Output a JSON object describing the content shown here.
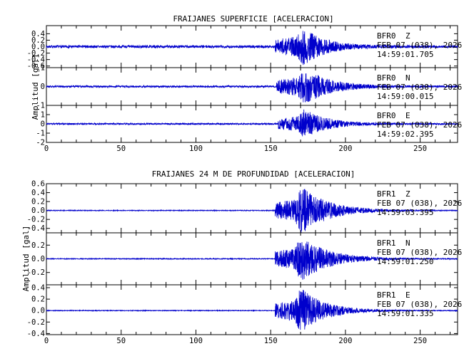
{
  "chart_data": [
    {
      "type": "line",
      "title": "FRAIJANES SUPERFICIE [ACELERACION]",
      "ylabel": "Amplitud [gal]",
      "xlim": [
        0,
        275
      ],
      "x_ticks": [
        "0",
        "50",
        "100",
        "150",
        "200",
        "250"
      ],
      "line_color": "#0000cc",
      "series": [
        {
          "station": "BFR0",
          "component": "Z",
          "date": "FEB 07 (038), 2026",
          "time": "14:59:01.705",
          "ylim": [
            -0.65,
            0.65
          ],
          "y_ticks": [
            "0.4",
            "0.2",
            "0.0",
            "-0.2",
            "-0.4",
            "-0.6"
          ],
          "onset_s": 153,
          "peak_s": 171,
          "peak_amplitude": 0.6,
          "noise_amplitude": 0.04,
          "coda_decay_s": 14
        },
        {
          "station": "BFR0",
          "component": "N",
          "date": "FEB 07 (038), 2026",
          "time": "14:59:00.015",
          "ylim": [
            -1.0,
            1.0
          ],
          "y_ticks": [
            "1",
            "0",
            "-1"
          ],
          "onset_s": 154,
          "peak_s": 172,
          "peak_amplitude": 1.0,
          "noise_amplitude": 0.05,
          "coda_decay_s": 16
        },
        {
          "station": "BFR0",
          "component": "E",
          "date": "FEB 07 (038), 2026",
          "time": "14:59:02.395",
          "ylim": [
            -2.0,
            2.0
          ],
          "y_ticks": [
            "1",
            "0",
            "-1",
            "-2"
          ],
          "onset_s": 155,
          "peak_s": 172,
          "peak_amplitude": 1.6,
          "noise_amplitude": 0.08,
          "coda_decay_s": 15
        }
      ]
    },
    {
      "type": "line",
      "title": "FRAIJANES 24 M DE PROFUNDIDAD [ACELERACION]",
      "ylabel": "Amplitud [gal]",
      "xlim": [
        0,
        275
      ],
      "x_ticks": [
        "0",
        "50",
        "100",
        "150",
        "200",
        "250"
      ],
      "line_color": "#0000cc",
      "series": [
        {
          "station": "BFR1",
          "component": "Z",
          "date": "FEB 07 (038), 2026",
          "time": "14:59:03.395",
          "ylim": [
            -0.5,
            0.6
          ],
          "y_ticks": [
            "0.6",
            "0.4",
            "0.2",
            "0.0",
            "-0.2",
            "-0.4"
          ],
          "onset_s": 153,
          "peak_s": 170,
          "peak_amplitude": 0.55,
          "noise_amplitude": 0.008,
          "coda_decay_s": 18
        },
        {
          "station": "BFR1",
          "component": "N",
          "date": "FEB 07 (038), 2026",
          "time": "14:59:01.250",
          "ylim": [
            -0.38,
            0.38
          ],
          "y_ticks": [
            "0.2",
            "0.0",
            "-0.2"
          ],
          "onset_s": 153,
          "peak_s": 170,
          "peak_amplitude": 0.34,
          "noise_amplitude": 0.006,
          "coda_decay_s": 18
        },
        {
          "station": "BFR1",
          "component": "E",
          "date": "FEB 07 (038), 2026",
          "time": "14:59:01.335",
          "ylim": [
            -0.42,
            0.45
          ],
          "y_ticks": [
            "0.4",
            "0.2",
            "0.0",
            "-0.2",
            "-0.4"
          ],
          "onset_s": 153,
          "peak_s": 170,
          "peak_amplitude": 0.4,
          "noise_amplitude": 0.006,
          "coda_decay_s": 16
        }
      ]
    }
  ]
}
